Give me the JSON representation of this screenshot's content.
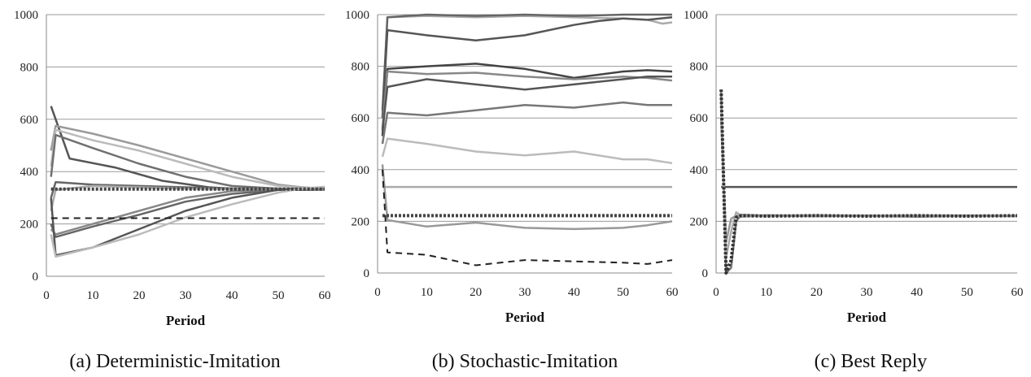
{
  "chart_data": [
    {
      "type": "line",
      "caption": "(a) Deterministic-Imitation",
      "xlabel": "Period",
      "ylabel": "",
      "xlim": [
        0,
        60
      ],
      "ylim": [
        0,
        1000
      ],
      "xticks": [
        "0",
        "10",
        "20",
        "30",
        "40",
        "50",
        "60"
      ],
      "yticks": [
        "0",
        "200",
        "400",
        "600",
        "800",
        "1000"
      ],
      "grid": "horizontal",
      "series": [
        {
          "style": "solid",
          "color": "#555555",
          "x": [
            1,
            5,
            15,
            25,
            35,
            45,
            50,
            55,
            60
          ],
          "y": [
            650,
            450,
            415,
            365,
            340,
            330,
            333,
            330,
            330
          ]
        },
        {
          "style": "solid",
          "color": "#9a9a9a",
          "x": [
            1,
            2,
            10,
            20,
            30,
            40,
            50,
            55,
            60
          ],
          "y": [
            480,
            575,
            545,
            500,
            450,
            400,
            350,
            340,
            335
          ]
        },
        {
          "style": "solid",
          "color": "#bbbbbb",
          "x": [
            1,
            2,
            10,
            20,
            30,
            40,
            50,
            55,
            60
          ],
          "y": [
            420,
            560,
            520,
            480,
            430,
            380,
            345,
            338,
            333
          ]
        },
        {
          "style": "solid",
          "color": "#707070",
          "x": [
            1,
            2,
            10,
            20,
            30,
            40,
            50,
            55,
            60
          ],
          "y": [
            380,
            540,
            490,
            430,
            380,
            345,
            335,
            330,
            330
          ]
        },
        {
          "style": "solid",
          "color": "#666666",
          "x": [
            1,
            2,
            10,
            20,
            30,
            40,
            50,
            55,
            60
          ],
          "y": [
            300,
            360,
            350,
            345,
            340,
            335,
            333,
            330,
            330
          ]
        },
        {
          "style": "solid",
          "color": "#aaaaaa",
          "x": [
            1,
            2,
            10,
            20,
            30,
            40,
            50,
            55,
            60
          ],
          "y": [
            250,
            330,
            345,
            340,
            335,
            333,
            332,
            331,
            330
          ]
        },
        {
          "style": "solid",
          "color": "#666666",
          "x": [
            1,
            2,
            10,
            20,
            30,
            40,
            50,
            55,
            60
          ],
          "y": [
            200,
            150,
            190,
            235,
            285,
            315,
            330,
            332,
            332
          ]
        },
        {
          "style": "solid",
          "color": "#888888",
          "x": [
            1,
            2,
            10,
            20,
            30,
            40,
            50,
            55,
            60
          ],
          "y": [
            180,
            160,
            200,
            250,
            300,
            325,
            332,
            333,
            332
          ]
        },
        {
          "style": "solid",
          "color": "#555555",
          "x": [
            1,
            2,
            10,
            20,
            30,
            40,
            50,
            55,
            60
          ],
          "y": [
            300,
            80,
            110,
            180,
            250,
            300,
            330,
            335,
            340
          ]
        },
        {
          "style": "solid",
          "color": "#bbbbbb",
          "x": [
            1,
            2,
            10,
            20,
            30,
            40,
            50,
            55,
            60
          ],
          "y": [
            160,
            75,
            110,
            160,
            225,
            275,
            320,
            335,
            342
          ]
        },
        {
          "style": "dotted",
          "color": "#444444",
          "x": [
            1,
            60
          ],
          "y": [
            333,
            333
          ]
        },
        {
          "style": "dashed",
          "color": "#222222",
          "x": [
            1,
            60
          ],
          "y": [
            222,
            222
          ]
        }
      ]
    },
    {
      "type": "line",
      "caption": "(b) Stochastic-Imitation",
      "xlabel": "Period",
      "ylabel": "",
      "xlim": [
        0,
        60
      ],
      "ylim": [
        0,
        1000
      ],
      "xticks": [
        "0",
        "10",
        "20",
        "30",
        "40",
        "50",
        "60"
      ],
      "yticks": [
        "0",
        "200",
        "400",
        "600",
        "800",
        "1000"
      ],
      "grid": "horizontal",
      "series": [
        {
          "style": "solid",
          "color": "#aaaaaa",
          "x": [
            1,
            2,
            10,
            20,
            30,
            40,
            50,
            55,
            58,
            60
          ],
          "y": [
            600,
            990,
            995,
            990,
            995,
            990,
            985,
            980,
            965,
            970
          ]
        },
        {
          "style": "solid",
          "color": "#666666",
          "x": [
            1,
            2,
            10,
            20,
            30,
            40,
            50,
            55,
            60
          ],
          "y": [
            630,
            990,
            1000,
            995,
            1000,
            995,
            1000,
            1000,
            1000
          ]
        },
        {
          "style": "solid",
          "color": "#555555",
          "x": [
            1,
            2,
            10,
            20,
            30,
            40,
            45,
            50,
            55,
            60
          ],
          "y": [
            600,
            940,
            920,
            900,
            920,
            960,
            975,
            985,
            980,
            990
          ]
        },
        {
          "style": "solid",
          "color": "#444444",
          "x": [
            1,
            2,
            10,
            20,
            30,
            40,
            50,
            55,
            60
          ],
          "y": [
            530,
            790,
            800,
            810,
            790,
            755,
            780,
            785,
            780
          ]
        },
        {
          "style": "solid",
          "color": "#888888",
          "x": [
            1,
            2,
            10,
            20,
            30,
            40,
            50,
            55,
            60
          ],
          "y": [
            560,
            780,
            770,
            775,
            760,
            750,
            760,
            755,
            745
          ]
        },
        {
          "style": "solid",
          "color": "#555555",
          "x": [
            1,
            2,
            10,
            20,
            30,
            40,
            50,
            55,
            60
          ],
          "y": [
            550,
            720,
            750,
            730,
            710,
            730,
            750,
            760,
            760
          ]
        },
        {
          "style": "solid",
          "color": "#777777",
          "x": [
            1,
            2,
            10,
            20,
            30,
            40,
            50,
            55,
            60
          ],
          "y": [
            500,
            620,
            610,
            630,
            650,
            640,
            660,
            650,
            650
          ]
        },
        {
          "style": "solid",
          "color": "#bbbbbb",
          "x": [
            1,
            2,
            10,
            20,
            30,
            40,
            50,
            55,
            60
          ],
          "y": [
            450,
            520,
            500,
            470,
            455,
            470,
            440,
            440,
            425
          ]
        },
        {
          "style": "solid",
          "color": "#aaaaaa",
          "x": [
            1,
            60
          ],
          "y": [
            333,
            333
          ]
        },
        {
          "style": "solid",
          "color": "#999999",
          "x": [
            1,
            2,
            10,
            20,
            30,
            40,
            50,
            55,
            60
          ],
          "y": [
            420,
            205,
            180,
            195,
            175,
            170,
            175,
            185,
            200
          ]
        },
        {
          "style": "dotted",
          "color": "#444444",
          "x": [
            1,
            60
          ],
          "y": [
            222,
            222
          ]
        },
        {
          "style": "dashed",
          "color": "#222222",
          "x": [
            1,
            2,
            10,
            20,
            30,
            40,
            50,
            55,
            60
          ],
          "y": [
            400,
            80,
            70,
            30,
            50,
            45,
            40,
            35,
            50
          ]
        }
      ]
    },
    {
      "type": "line",
      "caption": "(c) Best Reply",
      "xlabel": "Period",
      "ylabel": "",
      "xlim": [
        0,
        60
      ],
      "ylim": [
        0,
        1000
      ],
      "xticks": [
        "0",
        "10",
        "20",
        "30",
        "40",
        "50",
        "60"
      ],
      "yticks": [
        "0",
        "200",
        "400",
        "600",
        "800",
        "1000"
      ],
      "grid": "horizontal",
      "series": [
        {
          "style": "solid",
          "color": "#555555",
          "x": [
            1,
            60
          ],
          "y": [
            333,
            333
          ]
        },
        {
          "style": "solid",
          "color": "#777777",
          "x": [
            1,
            2,
            3,
            4,
            5,
            10,
            20,
            30,
            40,
            50,
            60
          ],
          "y": [
            700,
            0,
            20,
            200,
            225,
            222,
            220,
            222,
            218,
            222,
            220
          ]
        },
        {
          "style": "solid",
          "color": "#aaaaaa",
          "x": [
            1,
            2,
            3,
            4,
            5,
            10,
            20,
            30,
            40,
            50,
            60
          ],
          "y": [
            650,
            60,
            160,
            235,
            222,
            220,
            224,
            220,
            223,
            220,
            222
          ]
        },
        {
          "style": "solid",
          "color": "#999999",
          "x": [
            1,
            2,
            3,
            4,
            5,
            10,
            20,
            30,
            40,
            50,
            60
          ],
          "y": [
            600,
            120,
            210,
            222,
            218,
            224,
            220,
            222,
            220,
            223,
            220
          ]
        },
        {
          "style": "dotted",
          "color": "#333333",
          "x": [
            1,
            2,
            3,
            4,
            5,
            10,
            20,
            30,
            40,
            50,
            60
          ],
          "y": [
            710,
            0,
            50,
            215,
            222,
            220,
            222,
            220,
            222,
            220,
            222
          ]
        }
      ]
    }
  ]
}
